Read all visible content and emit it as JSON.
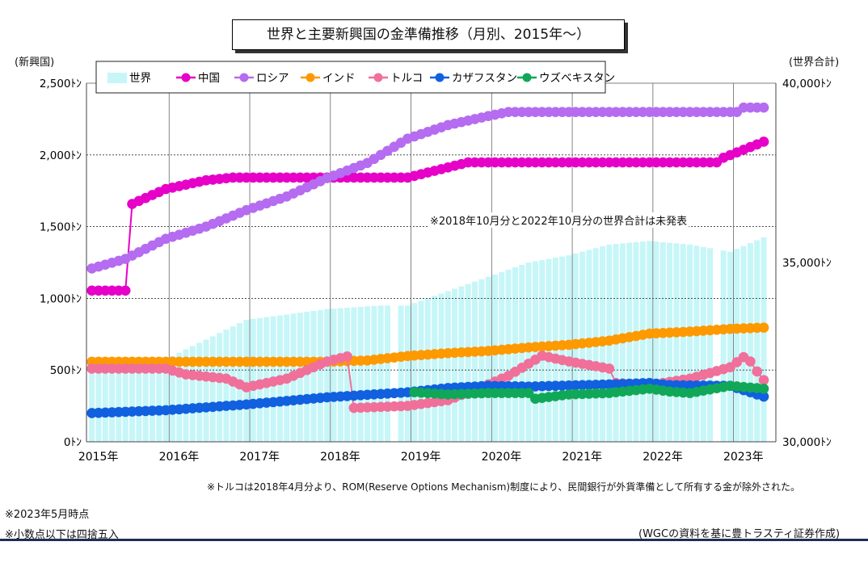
{
  "title": "世界と主要新興国の金準備推移（月別、2015年～）",
  "left_axis_unit": "(新興国)",
  "right_axis_unit": "(世界合計)",
  "missing_data_note": "※2018年10月分と2022年10月分の世界合計は未発表",
  "turkey_note": "※トルコは2018年4月分より、ROM(Reserve Options Mechanism)制度により、民間銀行が外貨準備として所有する金が除外された。",
  "as_of_note": "※2023年5月時点",
  "rounding_note": "※小数点以下は四捨五入",
  "source_note": "(WGCの資料を基に豊トラスティ証券作成)",
  "chart_data": {
    "type": "line",
    "x_start": "2015-01",
    "x_end": "2023-05",
    "x_tick_labels": [
      "2015年",
      "2016年",
      "2017年",
      "2018年",
      "2019年",
      "2020年",
      "2021年",
      "2022年",
      "2023年"
    ],
    "left_axis": {
      "min": 0,
      "max": 2500,
      "ticks": [
        "0ﾄﾝ",
        "500ﾄﾝ",
        "1,000ﾄﾝ",
        "1,500ﾄﾝ",
        "2,000ﾄﾝ",
        "2,500ﾄﾝ"
      ]
    },
    "right_axis": {
      "min": 30000,
      "max": 40000,
      "ticks": [
        "30,000ﾄﾝ",
        "35,000ﾄﾝ",
        "40,000ﾄﾝ"
      ]
    },
    "grid": true,
    "legend_position": "top-left",
    "bar_series": {
      "name": "世界",
      "color": "#c6f6f8",
      "axis": "right",
      "missing_months": [
        "2018-10",
        "2022-10"
      ],
      "keypoints": [
        [
          "2015-01",
          32000
        ],
        [
          "2015-12",
          32300
        ],
        [
          "2016-12",
          33400
        ],
        [
          "2017-12",
          33700
        ],
        [
          "2018-08",
          33800
        ],
        [
          "2018-12",
          33800
        ],
        [
          "2019-06",
          34200
        ],
        [
          "2019-12",
          34600
        ],
        [
          "2020-06",
          35000
        ],
        [
          "2020-12",
          35200
        ],
        [
          "2021-06",
          35500
        ],
        [
          "2021-12",
          35600
        ],
        [
          "2022-06",
          35500
        ],
        [
          "2022-09",
          35400
        ],
        [
          "2022-12",
          35300
        ],
        [
          "2023-05",
          35700
        ]
      ]
    },
    "series": [
      {
        "name": "中国",
        "color": "#e600c8",
        "start": "2015-01",
        "keypoints": [
          [
            "2015-01",
            1054
          ],
          [
            "2015-06",
            1054
          ],
          [
            "2015-07",
            1658
          ],
          [
            "2015-12",
            1762
          ],
          [
            "2016-06",
            1823
          ],
          [
            "2016-10",
            1842
          ],
          [
            "2018-12",
            1842
          ],
          [
            "2019-09",
            1948
          ],
          [
            "2022-10",
            1948
          ],
          [
            "2022-11",
            1980
          ],
          [
            "2023-05",
            2092
          ]
        ]
      },
      {
        "name": "ロシア",
        "color": "#b56cf0",
        "start": "2015-01",
        "keypoints": [
          [
            "2015-01",
            1208
          ],
          [
            "2015-06",
            1275
          ],
          [
            "2015-12",
            1415
          ],
          [
            "2016-06",
            1500
          ],
          [
            "2016-12",
            1615
          ],
          [
            "2017-06",
            1710
          ],
          [
            "2017-12",
            1838
          ],
          [
            "2018-06",
            1944
          ],
          [
            "2018-12",
            2113
          ],
          [
            "2019-06",
            2208
          ],
          [
            "2019-12",
            2271
          ],
          [
            "2020-03",
            2299
          ],
          [
            "2023-01",
            2299
          ],
          [
            "2023-02",
            2330
          ],
          [
            "2023-05",
            2330
          ]
        ]
      },
      {
        "name": "インド",
        "color": "#ff9900",
        "start": "2015-01",
        "keypoints": [
          [
            "2015-01",
            558
          ],
          [
            "2017-12",
            558
          ],
          [
            "2018-06",
            567
          ],
          [
            "2018-12",
            598
          ],
          [
            "2019-06",
            618
          ],
          [
            "2019-12",
            633
          ],
          [
            "2020-06",
            658
          ],
          [
            "2020-12",
            676
          ],
          [
            "2021-06",
            705
          ],
          [
            "2021-12",
            754
          ],
          [
            "2022-06",
            768
          ],
          [
            "2022-12",
            787
          ],
          [
            "2023-05",
            796
          ]
        ]
      },
      {
        "name": "トルコ",
        "color": "#f0709a",
        "start": "2015-01",
        "keypoints": [
          [
            "2015-01",
            510
          ],
          [
            "2015-06",
            510
          ],
          [
            "2015-12",
            510
          ],
          [
            "2016-03",
            470
          ],
          [
            "2016-09",
            440
          ],
          [
            "2016-12",
            380
          ],
          [
            "2017-06",
            440
          ],
          [
            "2017-12",
            560
          ],
          [
            "2018-03",
            595
          ],
          [
            "2018-04",
            236
          ],
          [
            "2018-12",
            250
          ],
          [
            "2019-06",
            290
          ],
          [
            "2019-12",
            400
          ],
          [
            "2020-03",
            460
          ],
          [
            "2020-08",
            600
          ],
          [
            "2020-12",
            560
          ],
          [
            "2021-06",
            510
          ],
          [
            "2021-07",
            410
          ],
          [
            "2021-12",
            395
          ],
          [
            "2022-06",
            440
          ],
          [
            "2022-12",
            520
          ],
          [
            "2023-02",
            590
          ],
          [
            "2023-03",
            560
          ],
          [
            "2023-04",
            490
          ],
          [
            "2023-05",
            430
          ]
        ]
      },
      {
        "name": "カザフスタン",
        "color": "#1060e0",
        "start": "2015-01",
        "keypoints": [
          [
            "2015-01",
            200
          ],
          [
            "2015-12",
            220
          ],
          [
            "2016-12",
            260
          ],
          [
            "2017-12",
            310
          ],
          [
            "2018-12",
            345
          ],
          [
            "2019-06",
            375
          ],
          [
            "2019-12",
            390
          ],
          [
            "2020-06",
            385
          ],
          [
            "2021-06",
            400
          ],
          [
            "2021-12",
            410
          ],
          [
            "2022-03",
            395
          ],
          [
            "2022-12",
            390
          ],
          [
            "2023-05",
            315
          ]
        ]
      },
      {
        "name": "ウズベキスタン",
        "color": "#10a858",
        "start": "2019-01",
        "keypoints": [
          [
            "2019-01",
            345
          ],
          [
            "2019-06",
            330
          ],
          [
            "2019-12",
            340
          ],
          [
            "2020-06",
            340
          ],
          [
            "2020-07",
            300
          ],
          [
            "2020-12",
            330
          ],
          [
            "2021-06",
            340
          ],
          [
            "2021-12",
            370
          ],
          [
            "2022-03",
            350
          ],
          [
            "2022-06",
            340
          ],
          [
            "2022-12",
            390
          ],
          [
            "2023-05",
            370
          ]
        ]
      }
    ]
  }
}
